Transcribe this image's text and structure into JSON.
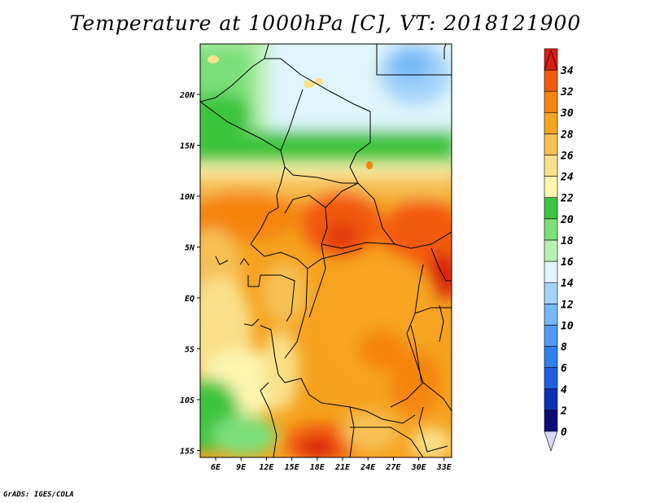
{
  "title": "Temperature at 1000hPa [C], VT: 2018121900",
  "footer": "GrADS: IGES/COLA",
  "map": {
    "lat_labels": [
      "20N",
      "15N",
      "10N",
      "5N",
      "EQ",
      "5S",
      "10S",
      "15S"
    ],
    "lon_labels": [
      "6E",
      "9E",
      "12E",
      "15E",
      "18E",
      "21E",
      "24E",
      "27E",
      "30E",
      "33E"
    ]
  },
  "colorbar": {
    "levels": [
      "0",
      "2",
      "4",
      "6",
      "8",
      "10",
      "12",
      "14",
      "16",
      "18",
      "20",
      "22",
      "24",
      "26",
      "28",
      "30",
      "32",
      "34"
    ],
    "colors": [
      "#100a78",
      "#0a30b4",
      "#1e5fe0",
      "#2f7fec",
      "#4f9af2",
      "#77b8f6",
      "#a4d4fa",
      "#dff6fc",
      "#b8f2b2",
      "#7ce07a",
      "#3cc43e",
      "#fcf6b0",
      "#fae08a",
      "#f7c055",
      "#f7a520",
      "#f58410",
      "#f25a0c",
      "#d81e10"
    ],
    "low_color": "#d8d8f8",
    "high_color": "#d81e10"
  }
}
